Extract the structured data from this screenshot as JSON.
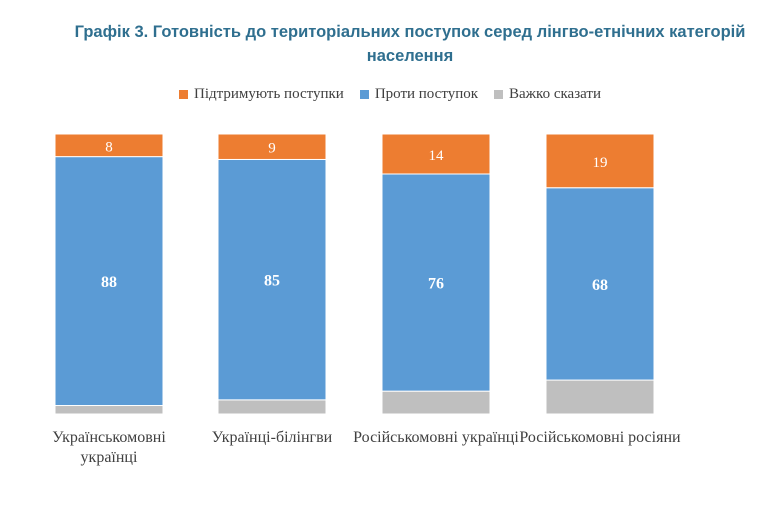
{
  "title": "Графік 3. Готовність до територіальних поступок серед лінгво-етнічних категорій населення",
  "chart_data": {
    "type": "bar",
    "stacked": true,
    "percent_stacked": true,
    "categories": [
      "Українськомовні українці",
      "Українці-білінгви",
      "Російськомовні українці",
      "Російськомовні росіяни"
    ],
    "series": [
      {
        "name": "Підтримують поступки",
        "color": "#ed7d31",
        "values": [
          8,
          9,
          14,
          19
        ],
        "labels": [
          "8",
          "9",
          "14",
          "19"
        ]
      },
      {
        "name": "Проти поступок",
        "color": "#5b9bd5",
        "values": [
          88,
          85,
          76,
          68
        ],
        "labels": [
          "88",
          "85",
          "76",
          "68"
        ]
      },
      {
        "name": "Важко сказати",
        "color": "#bfbfbf",
        "values": [
          3,
          5,
          8,
          12
        ],
        "labels": [
          "",
          "",
          "",
          ""
        ]
      }
    ],
    "legend_position": "top",
    "grid": false
  }
}
